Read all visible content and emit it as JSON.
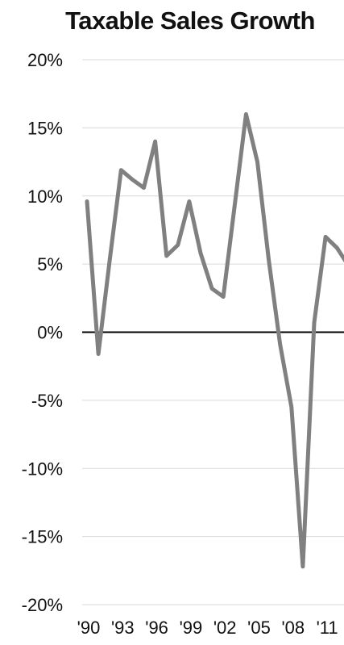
{
  "chart_data": {
    "type": "line",
    "title": "Taxable Sales Growth",
    "xlabel": "",
    "ylabel": "",
    "ylim": [
      -20,
      20
    ],
    "y_ticks": [
      "20%",
      "15%",
      "10%",
      "5%",
      "0%",
      "-5%",
      "-10%",
      "-15%",
      "-20%"
    ],
    "y_tick_values": [
      20,
      15,
      10,
      5,
      0,
      -5,
      -10,
      -15,
      -20
    ],
    "x_ticks": [
      "'90",
      "'93",
      "'96",
      "'99",
      "'02",
      "'05",
      "'08",
      "'11"
    ],
    "x_tick_values": [
      1990,
      1993,
      1996,
      1999,
      2002,
      2005,
      2008,
      2011
    ],
    "grid": true,
    "series": [
      {
        "color": "#808080",
        "x": [
          1990,
          1991,
          1992,
          1993,
          1994,
          1995,
          1996,
          1997,
          1998,
          1999,
          2000,
          2001,
          2002,
          2003,
          2004,
          2005,
          2006,
          2007,
          2008,
          2009,
          2010,
          2011,
          2012,
          2013
        ],
        "y": [
          9.6,
          -1.6,
          5.3,
          11.9,
          11.2,
          10.6,
          14.0,
          5.6,
          6.4,
          9.6,
          5.8,
          3.2,
          2.6,
          9.3,
          16.0,
          12.5,
          5.3,
          -0.9,
          -5.5,
          -17.2,
          0.7,
          7.0,
          6.2,
          4.9
        ]
      }
    ],
    "colors": {
      "grid": "#d9d9d9",
      "zero_line": "#000000",
      "series": "#808080"
    }
  }
}
